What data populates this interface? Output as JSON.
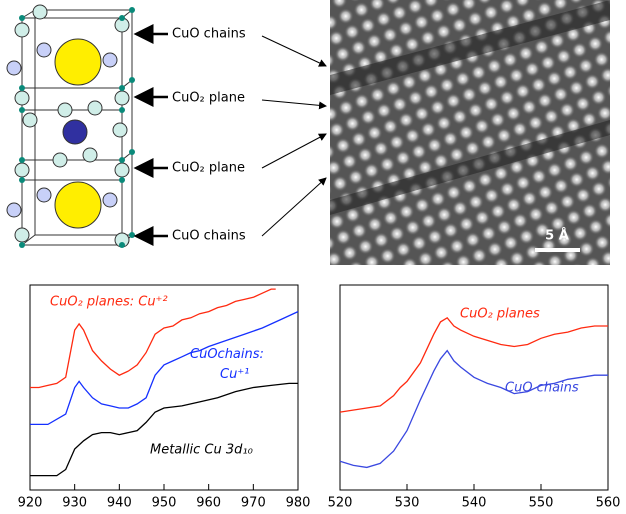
{
  "diagram": {
    "labels": [
      "CuO chains",
      "CuO₂ plane",
      "CuO₂ plane",
      "CuO chains"
    ],
    "scale_bar": "5 Å"
  },
  "chart_data": [
    {
      "type": "line",
      "xlim": [
        920,
        980
      ],
      "xticks": [
        920,
        930,
        940,
        950,
        960,
        970,
        980
      ],
      "ylim": [
        0,
        100
      ],
      "series": [
        {
          "name": "CuO₂ planes: Cu⁺²",
          "color": "#ff2a10",
          "x": [
            920,
            922,
            924,
            926,
            928,
            930,
            931,
            932,
            934,
            936,
            938,
            940,
            942,
            944,
            946,
            948,
            950,
            952,
            954,
            956,
            958,
            960,
            962,
            964,
            966,
            968,
            970,
            972,
            974,
            975
          ],
          "values": [
            50,
            50,
            51,
            52,
            55,
            78,
            81,
            78,
            68,
            63,
            59,
            56,
            58,
            61,
            67,
            76,
            79,
            80,
            83,
            84,
            86,
            87,
            89,
            90,
            92,
            93,
            94,
            96,
            98,
            98
          ]
        },
        {
          "name": "CuOchains: Cu⁺¹",
          "color": "#1530ff",
          "x": [
            920,
            924,
            928,
            930,
            931,
            932,
            934,
            936,
            938,
            940,
            942,
            944,
            946,
            948,
            950,
            952,
            954,
            956,
            958,
            960,
            964,
            968,
            972,
            976,
            980
          ],
          "values": [
            32,
            32,
            37,
            50,
            53,
            50,
            45,
            42,
            41,
            40,
            40,
            42,
            45,
            56,
            61,
            63,
            65,
            67,
            68,
            70,
            73,
            76,
            79,
            83,
            87
          ]
        },
        {
          "name": "Metallic Cu 3d₁₀",
          "color": "#000000",
          "x": [
            920,
            924,
            926,
            928,
            930,
            932,
            934,
            936,
            938,
            940,
            942,
            944,
            946,
            948,
            950,
            954,
            958,
            962,
            966,
            970,
            974,
            978,
            980
          ],
          "values": [
            7,
            7,
            7,
            10,
            20,
            24,
            27,
            28,
            28,
            27,
            28,
            29,
            33,
            38,
            40,
            41,
            43,
            45,
            48,
            50,
            51,
            52,
            52
          ]
        }
      ]
    },
    {
      "type": "line",
      "xlim": [
        520,
        560
      ],
      "xticks": [
        520,
        530,
        540,
        550,
        560
      ],
      "ylim": [
        0,
        100
      ],
      "series": [
        {
          "name": "CuO₂ planes",
          "color": "#ff2a10",
          "x": [
            520,
            524,
            526,
            528,
            529,
            530,
            532,
            534,
            535,
            536,
            537,
            538,
            540,
            542,
            544,
            546,
            548,
            550,
            552,
            554,
            556,
            558,
            560
          ],
          "values": [
            38,
            40,
            41,
            46,
            50,
            53,
            62,
            76,
            82,
            84,
            80,
            78,
            75,
            73,
            71,
            70,
            71,
            74,
            76,
            77,
            79,
            80,
            80
          ]
        },
        {
          "name": "CuO chains",
          "color": "#3a48e0",
          "x": [
            520,
            522,
            524,
            526,
            528,
            530,
            532,
            534,
            535,
            536,
            537,
            538,
            540,
            542,
            544,
            546,
            548,
            550,
            552,
            554,
            556,
            558,
            560
          ],
          "values": [
            14,
            12,
            11,
            13,
            19,
            29,
            44,
            58,
            64,
            68,
            63,
            60,
            55,
            52,
            50,
            47,
            48,
            51,
            52,
            54,
            55,
            56,
            56
          ]
        }
      ]
    }
  ]
}
